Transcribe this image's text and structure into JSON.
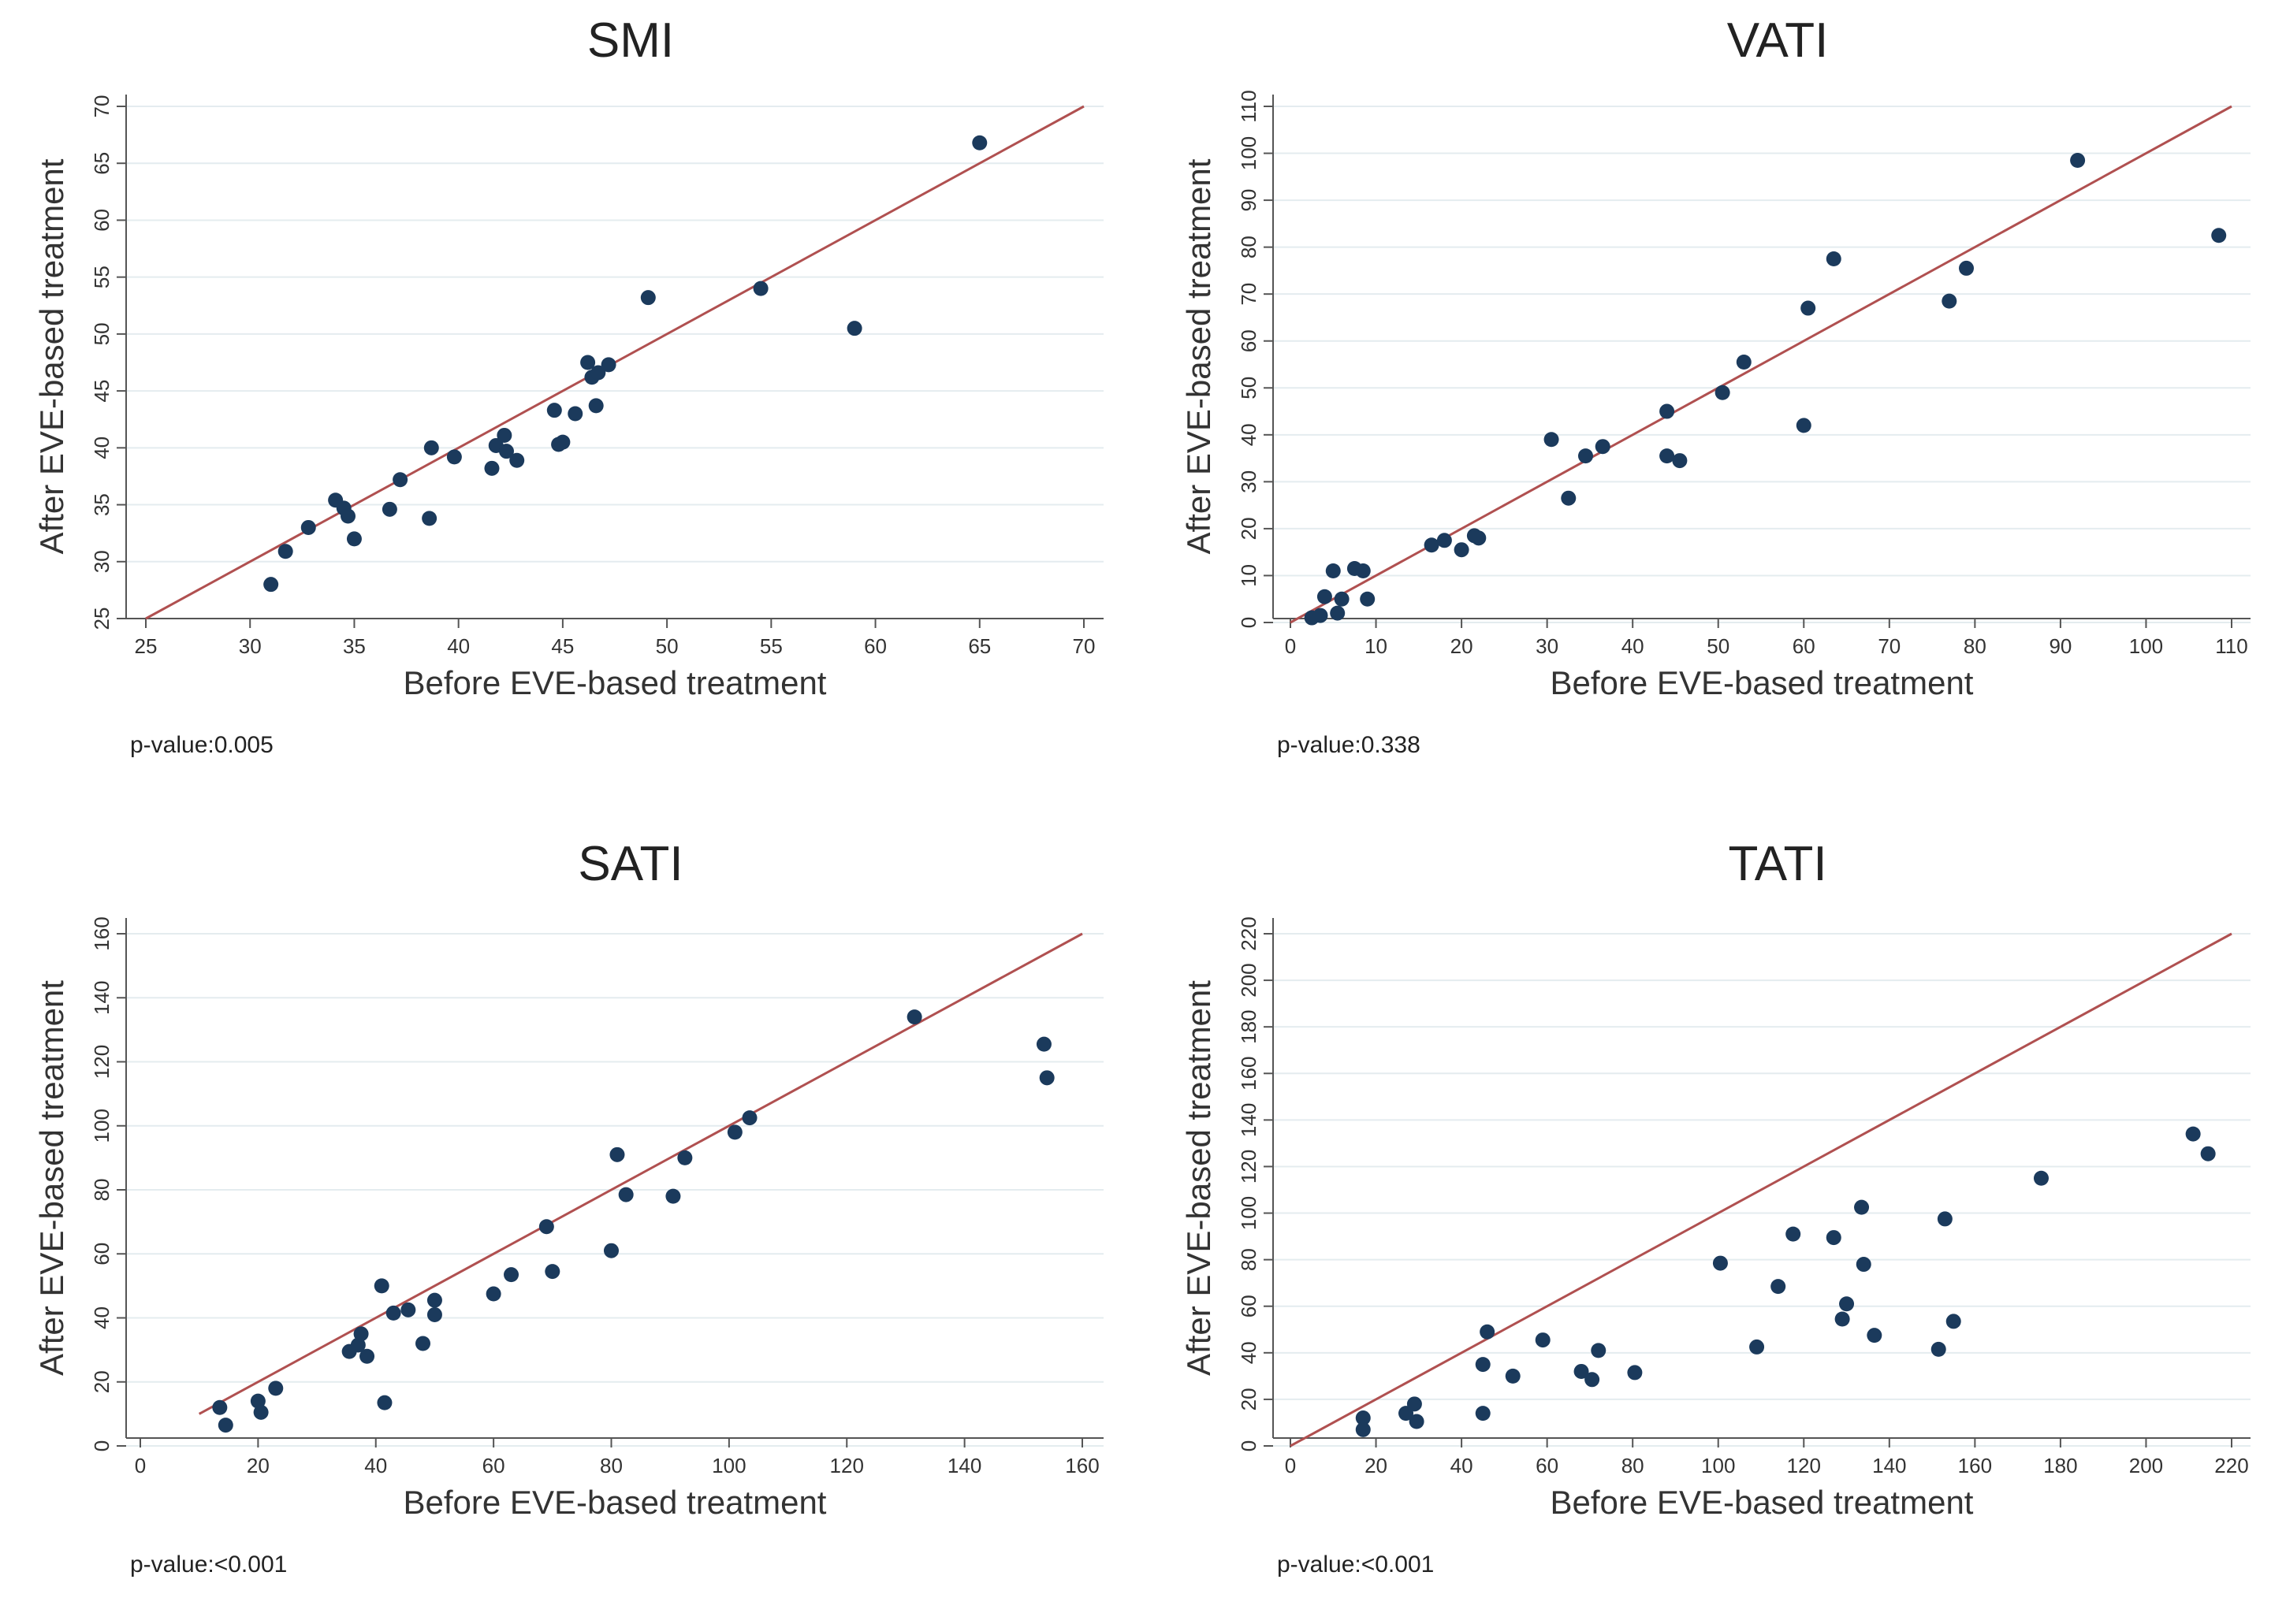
{
  "colors": {
    "point": "#1b3a5c",
    "reference_line": "#b05050",
    "axis": "#555555",
    "grid": "#e4ecef"
  },
  "chart_data": [
    {
      "type": "scatter",
      "title": "SMI",
      "xlabel": "Before EVE-based treatment",
      "ylabel": "After EVE-based treatment",
      "xlim": [
        25,
        70
      ],
      "ylim": [
        25,
        70
      ],
      "xticks": [
        25,
        30,
        35,
        40,
        45,
        50,
        55,
        60,
        65,
        70
      ],
      "yticks": [
        25,
        30,
        35,
        40,
        45,
        50,
        55,
        60,
        65,
        70
      ],
      "grid": true,
      "reference_line": "y = x",
      "annotation": "p-value:0.005",
      "points": [
        [
          31.0,
          28.0
        ],
        [
          31.7,
          30.9
        ],
        [
          32.8,
          33.0
        ],
        [
          34.1,
          35.4
        ],
        [
          34.5,
          34.7
        ],
        [
          34.7,
          34.0
        ],
        [
          35.0,
          32.0
        ],
        [
          36.7,
          34.6
        ],
        [
          37.2,
          37.2
        ],
        [
          38.6,
          33.8
        ],
        [
          38.7,
          40.0
        ],
        [
          39.8,
          39.2
        ],
        [
          41.6,
          38.2
        ],
        [
          41.8,
          40.2
        ],
        [
          42.2,
          41.1
        ],
        [
          42.3,
          39.7
        ],
        [
          42.8,
          38.9
        ],
        [
          44.6,
          43.3
        ],
        [
          44.8,
          40.3
        ],
        [
          45.0,
          40.5
        ],
        [
          45.6,
          43.0
        ],
        [
          46.2,
          47.5
        ],
        [
          46.4,
          46.2
        ],
        [
          46.6,
          43.7
        ],
        [
          46.7,
          46.6
        ],
        [
          47.2,
          47.3
        ],
        [
          49.1,
          53.2
        ],
        [
          54.5,
          54.0
        ],
        [
          59.0,
          50.5
        ],
        [
          65.0,
          66.8
        ]
      ]
    },
    {
      "type": "scatter",
      "title": "VATI",
      "xlabel": "Before EVE-based treatment",
      "ylabel": "After EVE-based treatment",
      "xlim": [
        0,
        110
      ],
      "ylim": [
        0,
        110
      ],
      "xticks": [
        0,
        10,
        20,
        30,
        40,
        50,
        60,
        70,
        80,
        90,
        100,
        110
      ],
      "yticks": [
        0,
        10,
        20,
        30,
        40,
        50,
        60,
        70,
        80,
        90,
        100,
        110
      ],
      "grid": true,
      "reference_line": "y = x",
      "annotation": "p-value:0.338",
      "points": [
        [
          2.5,
          1.0
        ],
        [
          3.5,
          1.5
        ],
        [
          4.0,
          5.5
        ],
        [
          5.0,
          11.0
        ],
        [
          5.5,
          2.0
        ],
        [
          6.0,
          5.0
        ],
        [
          7.5,
          11.5
        ],
        [
          8.5,
          11.0
        ],
        [
          9.0,
          5.0
        ],
        [
          16.5,
          16.5
        ],
        [
          18.0,
          17.5
        ],
        [
          20.0,
          15.5
        ],
        [
          21.5,
          18.5
        ],
        [
          22.0,
          18.0
        ],
        [
          30.5,
          39.0
        ],
        [
          32.5,
          26.5
        ],
        [
          34.5,
          35.5
        ],
        [
          36.5,
          37.5
        ],
        [
          44.0,
          45.0
        ],
        [
          44.0,
          35.5
        ],
        [
          45.5,
          34.5
        ],
        [
          50.5,
          49.0
        ],
        [
          53.0,
          55.5
        ],
        [
          60.0,
          42.0
        ],
        [
          60.5,
          67.0
        ],
        [
          63.5,
          77.5
        ],
        [
          77.0,
          68.5
        ],
        [
          79.0,
          75.5
        ],
        [
          92.0,
          98.5
        ],
        [
          108.5,
          82.5
        ]
      ]
    },
    {
      "type": "scatter",
      "title": "SATI",
      "xlabel": "Before EVE-based treatment",
      "ylabel": "After EVE-based treatment",
      "xlim": [
        0,
        160
      ],
      "ylim": [
        0,
        160
      ],
      "xticks": [
        0,
        20,
        40,
        60,
        80,
        100,
        120,
        140,
        160
      ],
      "yticks": [
        0,
        20,
        40,
        60,
        80,
        100,
        120,
        140,
        160
      ],
      "grid": true,
      "reference_line": "y = x",
      "annotation": "p-value:<0.001",
      "points": [
        [
          13.5,
          12.0
        ],
        [
          14.5,
          6.5
        ],
        [
          20.0,
          14.0
        ],
        [
          20.5,
          10.5
        ],
        [
          23.0,
          18.0
        ],
        [
          35.5,
          29.5
        ],
        [
          37.0,
          31.5
        ],
        [
          37.5,
          35.0
        ],
        [
          38.5,
          28.0
        ],
        [
          41.0,
          50.0
        ],
        [
          41.5,
          13.5
        ],
        [
          43.0,
          41.5
        ],
        [
          45.5,
          42.5
        ],
        [
          48.0,
          32.0
        ],
        [
          50.0,
          45.5
        ],
        [
          50.0,
          41.0
        ],
        [
          60.0,
          47.5
        ],
        [
          63.0,
          53.5
        ],
        [
          69.0,
          68.5
        ],
        [
          70.0,
          54.5
        ],
        [
          80.0,
          61.0
        ],
        [
          81.0,
          91.0
        ],
        [
          82.5,
          78.5
        ],
        [
          90.5,
          78.0
        ],
        [
          92.5,
          90.0
        ],
        [
          101.0,
          98.0
        ],
        [
          103.5,
          102.5
        ],
        [
          131.5,
          134.0
        ],
        [
          153.5,
          125.5
        ],
        [
          154.0,
          115.0
        ]
      ]
    },
    {
      "type": "scatter",
      "title": "TATI",
      "xlabel": "Before EVE-based treatment",
      "ylabel": "After EVE-based treatment",
      "xlim": [
        0,
        220
      ],
      "ylim": [
        0,
        220
      ],
      "xticks": [
        0,
        20,
        40,
        60,
        80,
        100,
        120,
        140,
        160,
        180,
        200,
        220
      ],
      "yticks": [
        0,
        20,
        40,
        60,
        80,
        100,
        120,
        140,
        160,
        180,
        200,
        220
      ],
      "grid": true,
      "reference_line": "y = x",
      "annotation": "p-value:<0.001",
      "points": [
        [
          17.0,
          12.0
        ],
        [
          17.0,
          7.0
        ],
        [
          27.0,
          14.0
        ],
        [
          29.0,
          18.0
        ],
        [
          29.5,
          10.5
        ],
        [
          45.0,
          14.0
        ],
        [
          45.0,
          35.0
        ],
        [
          46.0,
          49.0
        ],
        [
          52.0,
          30.0
        ],
        [
          59.0,
          45.5
        ],
        [
          68.0,
          32.0
        ],
        [
          70.5,
          28.5
        ],
        [
          72.0,
          41.0
        ],
        [
          80.5,
          31.5
        ],
        [
          100.5,
          78.5
        ],
        [
          109.0,
          42.5
        ],
        [
          114.0,
          68.5
        ],
        [
          117.5,
          91.0
        ],
        [
          127.0,
          89.5
        ],
        [
          129.0,
          54.5
        ],
        [
          130.0,
          61.0
        ],
        [
          133.5,
          102.5
        ],
        [
          134.0,
          78.0
        ],
        [
          136.5,
          47.5
        ],
        [
          151.5,
          41.5
        ],
        [
          153.0,
          97.5
        ],
        [
          155.0,
          53.5
        ],
        [
          175.5,
          115.0
        ],
        [
          211.0,
          134.0
        ],
        [
          214.5,
          125.5
        ]
      ]
    }
  ]
}
